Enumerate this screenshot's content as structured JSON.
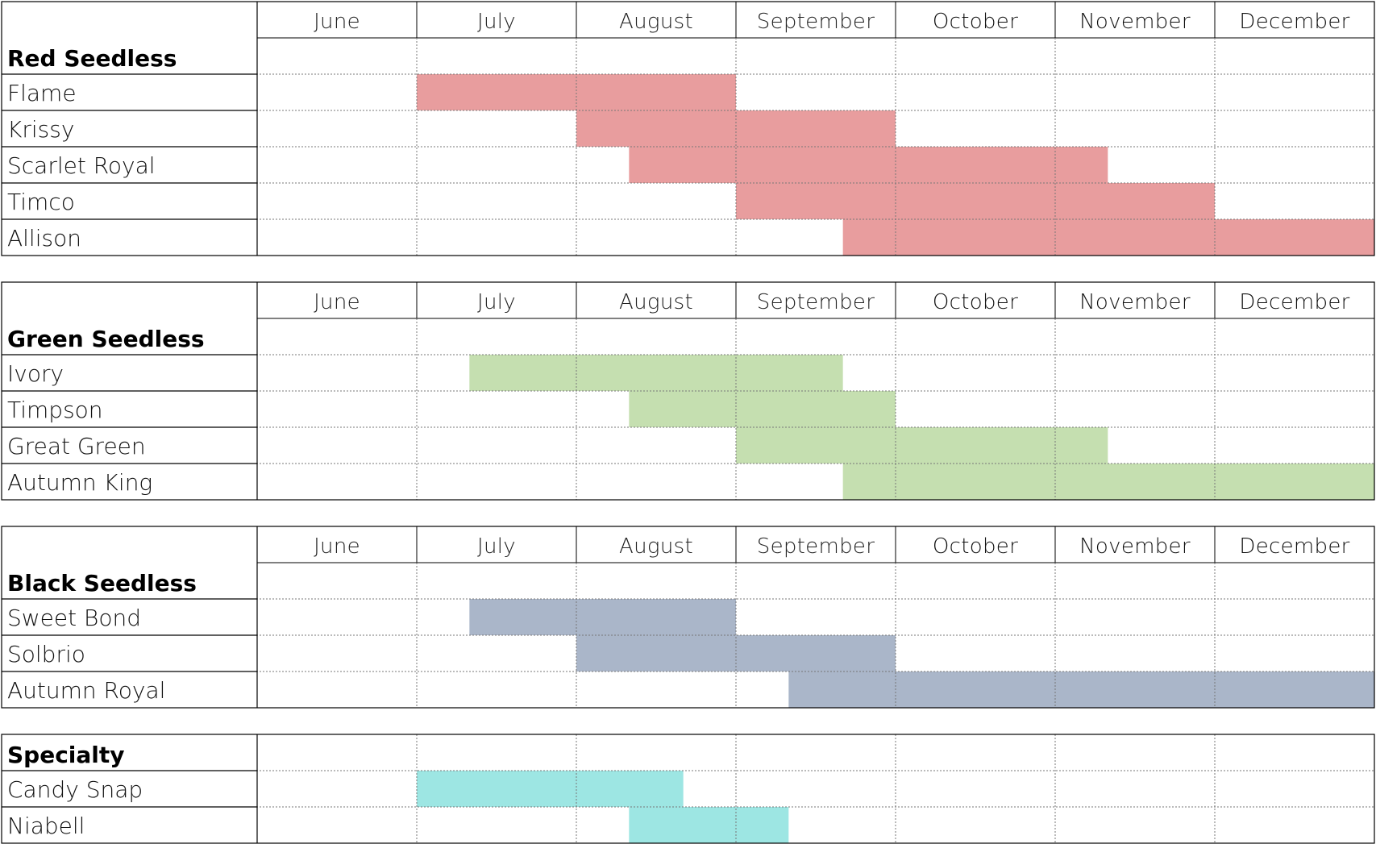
{
  "chart_data": {
    "type": "gantt",
    "months": [
      "June",
      "July",
      "August",
      "September",
      "October",
      "November",
      "December"
    ],
    "month_start_unit": "fraction of month elapsed (0 = start of June, 7 = end of December)",
    "colors": {
      "Red Seedless": "#e89d9e",
      "Green Seedless": "#c5dfb0",
      "Black Seedless": "#aab6c9",
      "Specialty": "#9de6e3"
    },
    "groups": [
      {
        "category": "Red Seedless",
        "show_month_header": true,
        "varieties": [
          {
            "name": "Flame",
            "start": 1.0,
            "end": 3.0
          },
          {
            "name": "Krissy",
            "start": 2.0,
            "end": 4.0
          },
          {
            "name": "Scarlet Royal",
            "start": 2.33,
            "end": 5.33
          },
          {
            "name": "Timco",
            "start": 3.0,
            "end": 6.0
          },
          {
            "name": "Allison",
            "start": 3.67,
            "end": 7.0
          }
        ]
      },
      {
        "category": "Green Seedless",
        "show_month_header": true,
        "varieties": [
          {
            "name": "Ivory",
            "start": 1.33,
            "end": 3.67
          },
          {
            "name": "Timpson",
            "start": 2.33,
            "end": 4.0
          },
          {
            "name": "Great Green",
            "start": 3.0,
            "end": 5.33
          },
          {
            "name": "Autumn King",
            "start": 3.67,
            "end": 7.0
          }
        ]
      },
      {
        "category": "Black Seedless",
        "show_month_header": true,
        "varieties": [
          {
            "name": "Sweet Bond",
            "start": 1.33,
            "end": 3.0
          },
          {
            "name": "Solbrio",
            "start": 2.0,
            "end": 4.0
          },
          {
            "name": "Autumn Royal",
            "start": 3.33,
            "end": 7.0
          }
        ]
      },
      {
        "category": "Specialty",
        "show_month_header": false,
        "varieties": [
          {
            "name": "Candy Snap",
            "start": 1.0,
            "end": 2.67
          },
          {
            "name": "Niabell",
            "start": 2.33,
            "end": 3.33
          }
        ]
      }
    ]
  }
}
